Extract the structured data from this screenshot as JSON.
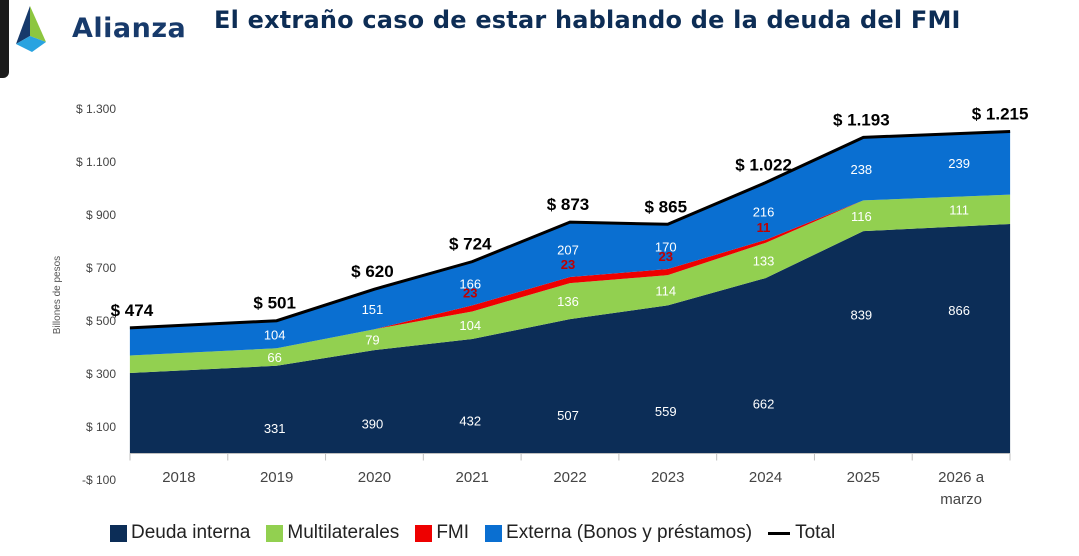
{
  "header": {
    "logo_text": "Alianza",
    "title": "El extraño caso de estar hablando de la deuda del FMI"
  },
  "colors": {
    "deuda_interna": "#0c2d57",
    "multilaterales": "#92d050",
    "fmi": "#ee0000",
    "externa": "#0a6fd1",
    "total": "#000000",
    "logo_blue": "#173a6b",
    "logo_green": "#8dc63f",
    "logo_lightblue": "#29a3e0"
  },
  "chart_data": {
    "type": "area",
    "title": "El extraño caso de estar hablando de la deuda del FMI",
    "ylabel": "Billones de pesos",
    "ylim": [
      -100,
      1300
    ],
    "yticks": [
      {
        "value": 1300,
        "label": "$ 1.300"
      },
      {
        "value": 1100,
        "label": "$ 1.100"
      },
      {
        "value": 900,
        "label": "$ 900"
      },
      {
        "value": 700,
        "label": "$ 700"
      },
      {
        "value": 500,
        "label": "$ 500"
      },
      {
        "value": 300,
        "label": "$ 300"
      },
      {
        "value": 100,
        "label": "$ 100"
      },
      {
        "value": -100,
        "label": "-$ 100"
      }
    ],
    "categories": [
      "2018",
      "2019",
      "2020",
      "2021",
      "2022",
      "2023",
      "2024",
      "2025",
      "2026 a marzo"
    ],
    "series": [
      {
        "name": "Deuda interna",
        "values": [
          304,
          331,
          390,
          432,
          507,
          559,
          662,
          839,
          866
        ],
        "labels": [
          "",
          "331",
          "390",
          "432",
          "507",
          "559",
          "662",
          "839",
          "866"
        ]
      },
      {
        "name": "Multilaterales",
        "values": [
          66,
          66,
          79,
          104,
          136,
          114,
          133,
          116,
          111
        ],
        "labels": [
          "",
          "66",
          "79",
          "104",
          "136",
          "114",
          "133",
          "116",
          "111"
        ]
      },
      {
        "name": "FMI",
        "values": [
          0,
          0,
          0,
          23,
          23,
          23,
          11,
          0,
          0
        ],
        "labels": [
          "",
          "",
          "",
          "23",
          "23",
          "23",
          "11",
          "",
          ""
        ]
      },
      {
        "name": "Externa (Bonos y préstamos)",
        "values": [
          104,
          104,
          151,
          166,
          207,
          170,
          216,
          238,
          239
        ],
        "labels": [
          "",
          "104",
          "151",
          "166",
          "207",
          "170",
          "216",
          "238",
          "239"
        ]
      }
    ],
    "total": {
      "name": "Total",
      "values": [
        474,
        501,
        620,
        724,
        873,
        865,
        1022,
        1193,
        1215
      ],
      "labels": [
        "$ 474",
        "$ 501",
        "$ 620",
        "$ 724",
        "$ 873",
        "$ 865",
        "$ 1.022",
        "$ 1.193",
        "$ 1.215"
      ]
    },
    "legend_position": "bottom",
    "grid": false
  }
}
